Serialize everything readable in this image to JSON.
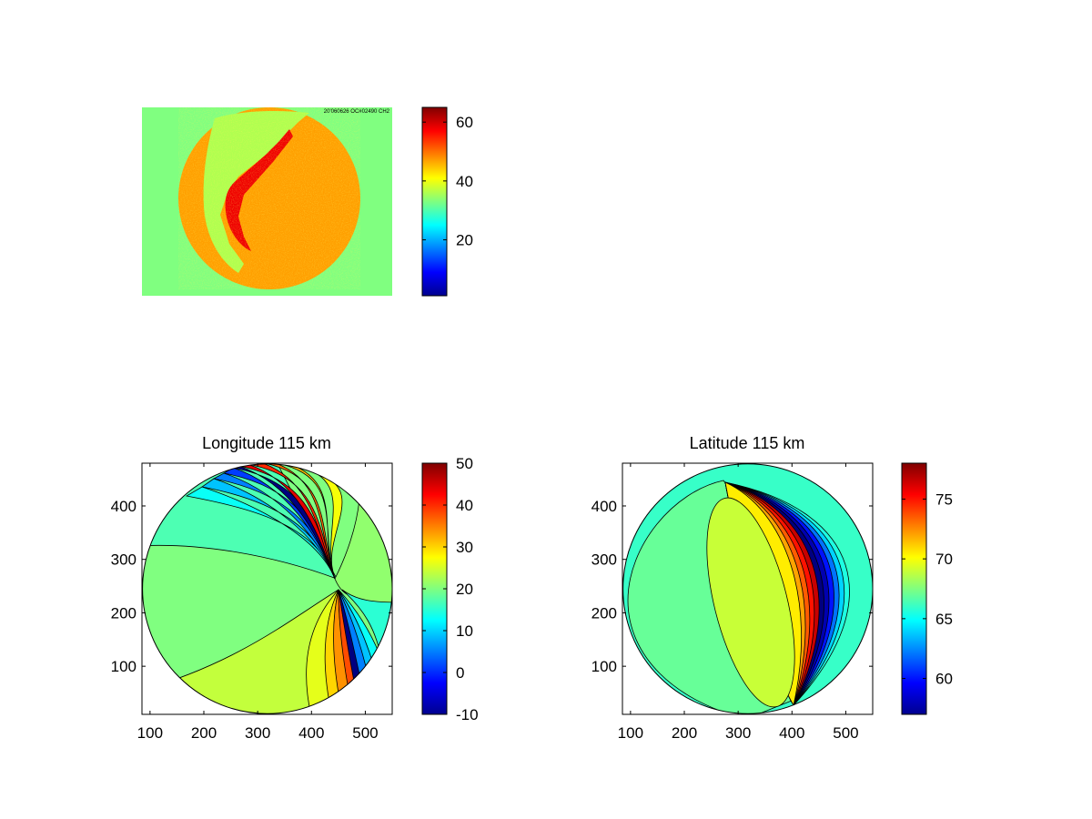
{
  "figure": {
    "background": "#ffffff",
    "colormap": "jet"
  },
  "chart_data": [
    {
      "type": "heatmap",
      "id": "image",
      "title": "",
      "xlabel": "",
      "ylabel": "",
      "axes_visible": false,
      "background_value": 33,
      "clim": [
        1,
        65
      ],
      "colorbar": {
        "ticks": [
          20,
          40,
          60
        ]
      },
      "stamp_text": "20'060626 OC#02490 CH2",
      "description_values": {
        "disk_mean": 47,
        "crescent_peak": 58,
        "band_value": 36
      }
    },
    {
      "type": "heatmap",
      "id": "longitude",
      "title": "Longitude 115 km",
      "xlabel": "",
      "ylabel": "",
      "xlim": [
        85,
        550
      ],
      "ylim": [
        10,
        480
      ],
      "xticks": [
        100,
        200,
        300,
        400,
        500
      ],
      "yticks": [
        100,
        200,
        300,
        400
      ],
      "clim": [
        -10,
        50
      ],
      "colorbar": {
        "ticks": [
          -10,
          0,
          10,
          20,
          30,
          40,
          50
        ]
      },
      "grid": false,
      "disk": {
        "cx": 318,
        "cy": 245,
        "r": 232
      },
      "regions": [
        {
          "value": 17,
          "zone": "top-left body"
        },
        {
          "value": 20,
          "zone": "bottom-left body"
        },
        {
          "value": 24,
          "zone": "bottom band"
        },
        {
          "value": 21,
          "zone": "right lobe"
        },
        {
          "value": 15,
          "zone": "right wedge"
        }
      ],
      "top_contours": [
        {
          "value": 13,
          "color": "#00bfff"
        },
        {
          "value": 9,
          "color": "#0080ff"
        },
        {
          "value": 5,
          "color": "#0040ff"
        },
        {
          "value": 1,
          "color": "#0000c0"
        },
        {
          "value": -10,
          "color": "#000000"
        },
        {
          "value": 44,
          "color": "#cc0000"
        },
        {
          "value": 40,
          "color": "#ff3000"
        },
        {
          "value": 36,
          "color": "#ff8000"
        },
        {
          "value": 31,
          "color": "#ffd000"
        },
        {
          "value": 27,
          "color": "#f0ff10"
        }
      ],
      "bottom_contours": [
        {
          "value": 26,
          "color": "#d0ff30"
        },
        {
          "value": 30,
          "color": "#ffd000"
        },
        {
          "value": 34,
          "color": "#ff9000"
        },
        {
          "value": 38,
          "color": "#ff4000"
        },
        {
          "value": -10,
          "color": "#000000"
        },
        {
          "value": 5,
          "color": "#0040ff"
        },
        {
          "value": 9,
          "color": "#0080ff"
        },
        {
          "value": 13,
          "color": "#00c0ff"
        }
      ]
    },
    {
      "type": "heatmap",
      "id": "latitude",
      "title": "Latitude 115 km",
      "xlabel": "",
      "ylabel": "",
      "xlim": [
        85,
        550
      ],
      "ylim": [
        10,
        480
      ],
      "xticks": [
        100,
        200,
        300,
        400,
        500
      ],
      "yticks": [
        100,
        200,
        300,
        400
      ],
      "clim": [
        57,
        78
      ],
      "colorbar": {
        "ticks": [
          60,
          65,
          70,
          75
        ]
      },
      "grid": false,
      "disk": {
        "cx": 318,
        "cy": 245,
        "r": 232
      },
      "regions": [
        {
          "value": 66,
          "zone": "outer disk"
        },
        {
          "value": 67,
          "zone": "left body"
        },
        {
          "value": 69,
          "zone": "ellipse"
        }
      ],
      "bands": [
        {
          "value": 70.5,
          "color": "#f0ff10"
        },
        {
          "value": 72,
          "color": "#ffd000"
        },
        {
          "value": 73.5,
          "color": "#ff9000"
        },
        {
          "value": 75,
          "color": "#ff3000"
        },
        {
          "value": 76.5,
          "color": "#c00000"
        },
        {
          "value": 57,
          "color": "#000000"
        },
        {
          "value": 58,
          "color": "#0000b0"
        },
        {
          "value": 60,
          "color": "#0030ff"
        },
        {
          "value": 62,
          "color": "#0080ff"
        },
        {
          "value": 64,
          "color": "#00c8ff"
        },
        {
          "value": 65.5,
          "color": "#20f0e0"
        }
      ]
    }
  ]
}
